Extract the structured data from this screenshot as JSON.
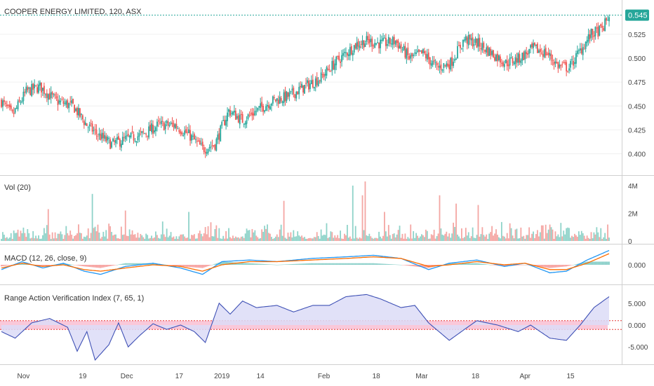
{
  "header": {
    "title": "COOPER ENERGY LIMITED, 120, ASX",
    "last_price": "0.545",
    "last_price_color": "#26a69a"
  },
  "colors": {
    "up": "#26a69a",
    "down": "#ef5350",
    "up_vol": "#8fd3c9",
    "down_vol": "#f4a6a3",
    "macd": "#2196f3",
    "signal": "#ff6d00",
    "ravi_line": "#3f51b5",
    "ravi_fill": "#dcdcf7",
    "band": "#f06292"
  },
  "chart_data": [
    {
      "type": "candlestick",
      "pane": "price",
      "title": "COOPER ENERGY LIMITED, 120, ASX",
      "ylim": [
        0.385,
        0.555
      ],
      "y_ticks": [
        "0.525",
        "0.500",
        "0.475",
        "0.450",
        "0.425",
        "0.400"
      ],
      "x_ticks": [
        "Nov",
        "19",
        "Dec",
        "17",
        "2019",
        "14",
        "Feb",
        "18",
        "Mar",
        "18",
        "Apr",
        "15"
      ],
      "close_path": [
        [
          0,
          0.455
        ],
        [
          8,
          0.44
        ],
        [
          18,
          0.465
        ],
        [
          28,
          0.47
        ],
        [
          40,
          0.455
        ],
        [
          52,
          0.45
        ],
        [
          62,
          0.43
        ],
        [
          70,
          0.42
        ],
        [
          80,
          0.41
        ],
        [
          90,
          0.415
        ],
        [
          102,
          0.42
        ],
        [
          114,
          0.43
        ],
        [
          126,
          0.43
        ],
        [
          136,
          0.42
        ],
        [
          146,
          0.405
        ],
        [
          155,
          0.41
        ],
        [
          165,
          0.445
        ],
        [
          175,
          0.435
        ],
        [
          185,
          0.445
        ],
        [
          196,
          0.455
        ],
        [
          208,
          0.46
        ],
        [
          220,
          0.47
        ],
        [
          232,
          0.48
        ],
        [
          242,
          0.495
        ],
        [
          250,
          0.505
        ],
        [
          258,
          0.515
        ],
        [
          266,
          0.518
        ],
        [
          276,
          0.515
        ],
        [
          286,
          0.518
        ],
        [
          296,
          0.5
        ],
        [
          306,
          0.505
        ],
        [
          316,
          0.49
        ],
        [
          326,
          0.495
        ],
        [
          336,
          0.52
        ],
        [
          346,
          0.515
        ],
        [
          356,
          0.505
        ],
        [
          366,
          0.495
        ],
        [
          376,
          0.5
        ],
        [
          386,
          0.51
        ],
        [
          396,
          0.505
        ],
        [
          404,
          0.492
        ],
        [
          412,
          0.49
        ],
        [
          420,
          0.508
        ],
        [
          428,
          0.525
        ],
        [
          436,
          0.53
        ],
        [
          441,
          0.545
        ]
      ],
      "last_value": 0.545
    },
    {
      "type": "bar",
      "pane": "volume",
      "title": "Vol (20)",
      "ylim": [
        0,
        4.3
      ],
      "y_ticks": [
        "4M",
        "2M",
        "0"
      ],
      "spikes": [
        [
          34,
          2.3
        ],
        [
          66,
          3.4
        ],
        [
          90,
          2.2
        ],
        [
          136,
          2.1
        ],
        [
          205,
          2.9
        ],
        [
          255,
          4.0
        ],
        [
          262,
          3.3
        ],
        [
          264,
          4.3
        ],
        [
          278,
          2.1
        ],
        [
          318,
          3.3
        ],
        [
          330,
          2.7
        ],
        [
          346,
          2.6
        ]
      ]
    },
    {
      "type": "line",
      "pane": "macd",
      "title": "MACD (12, 26, close, 9)",
      "ylim": [
        -0.011,
        0.011
      ],
      "y_ticks": [
        "0.000"
      ],
      "series": [
        {
          "role": "macd",
          "values": [
            [
              0,
              -0.003
            ],
            [
              15,
              0.002
            ],
            [
              30,
              -0.002
            ],
            [
              45,
              0.001
            ],
            [
              60,
              -0.004
            ],
            [
              72,
              -0.006
            ],
            [
              90,
              -0.001
            ],
            [
              110,
              0.001
            ],
            [
              130,
              -0.002
            ],
            [
              146,
              -0.006
            ],
            [
              160,
              0.002
            ],
            [
              180,
              0.003
            ],
            [
              200,
              0.002
            ],
            [
              225,
              0.004
            ],
            [
              250,
              0.005
            ],
            [
              270,
              0.006
            ],
            [
              290,
              0.004
            ],
            [
              310,
              -0.003
            ],
            [
              325,
              0.001
            ],
            [
              345,
              0.003
            ],
            [
              365,
              -0.001
            ],
            [
              380,
              0.001
            ],
            [
              398,
              -0.005
            ],
            [
              410,
              -0.004
            ],
            [
              425,
              0.003
            ],
            [
              441,
              0.009
            ]
          ]
        },
        {
          "role": "signal",
          "values": [
            [
              0,
              -0.002
            ],
            [
              15,
              0.001
            ],
            [
              30,
              -0.001
            ],
            [
              45,
              0.0
            ],
            [
              60,
              -0.003
            ],
            [
              72,
              -0.004
            ],
            [
              90,
              -0.002
            ],
            [
              110,
              0.0
            ],
            [
              130,
              -0.001
            ],
            [
              146,
              -0.004
            ],
            [
              160,
              0.0
            ],
            [
              180,
              0.002
            ],
            [
              200,
              0.002
            ],
            [
              225,
              0.003
            ],
            [
              250,
              0.004
            ],
            [
              270,
              0.005
            ],
            [
              290,
              0.004
            ],
            [
              310,
              -0.001
            ],
            [
              325,
              0.0
            ],
            [
              345,
              0.002
            ],
            [
              365,
              0.0
            ],
            [
              380,
              0.001
            ],
            [
              398,
              -0.003
            ],
            [
              410,
              -0.003
            ],
            [
              425,
              0.001
            ],
            [
              441,
              0.007
            ]
          ]
        }
      ]
    },
    {
      "type": "area",
      "pane": "ravi",
      "title": "Range Action Verification Index (7, 65, 1)",
      "ylim": [
        -8.5,
        8.5
      ],
      "y_ticks": [
        "5.000",
        "0.000",
        "-5.000"
      ],
      "band": [
        -1,
        1
      ],
      "values": [
        [
          0,
          -1.5
        ],
        [
          10,
          -3
        ],
        [
          22,
          0.5
        ],
        [
          35,
          1.5
        ],
        [
          48,
          -0.5
        ],
        [
          55,
          -6
        ],
        [
          62,
          -1.5
        ],
        [
          68,
          -8
        ],
        [
          78,
          -4.5
        ],
        [
          85,
          0.5
        ],
        [
          92,
          -5
        ],
        [
          100,
          -2.5
        ],
        [
          110,
          0.3
        ],
        [
          120,
          -1
        ],
        [
          130,
          0
        ],
        [
          140,
          -1.5
        ],
        [
          148,
          -4
        ],
        [
          158,
          5
        ],
        [
          166,
          2.5
        ],
        [
          175,
          5.5
        ],
        [
          185,
          4
        ],
        [
          200,
          4.5
        ],
        [
          212,
          3
        ],
        [
          226,
          4.5
        ],
        [
          238,
          4.5
        ],
        [
          250,
          6.5
        ],
        [
          265,
          7
        ],
        [
          275,
          6
        ],
        [
          290,
          4
        ],
        [
          300,
          4.5
        ],
        [
          310,
          0.5
        ],
        [
          325,
          -3.5
        ],
        [
          336,
          -1
        ],
        [
          345,
          1
        ],
        [
          360,
          0
        ],
        [
          375,
          -1.5
        ],
        [
          384,
          0
        ],
        [
          398,
          -3
        ],
        [
          410,
          -3.5
        ],
        [
          420,
          0
        ],
        [
          430,
          4
        ],
        [
          441,
          6.5
        ]
      ]
    }
  ]
}
